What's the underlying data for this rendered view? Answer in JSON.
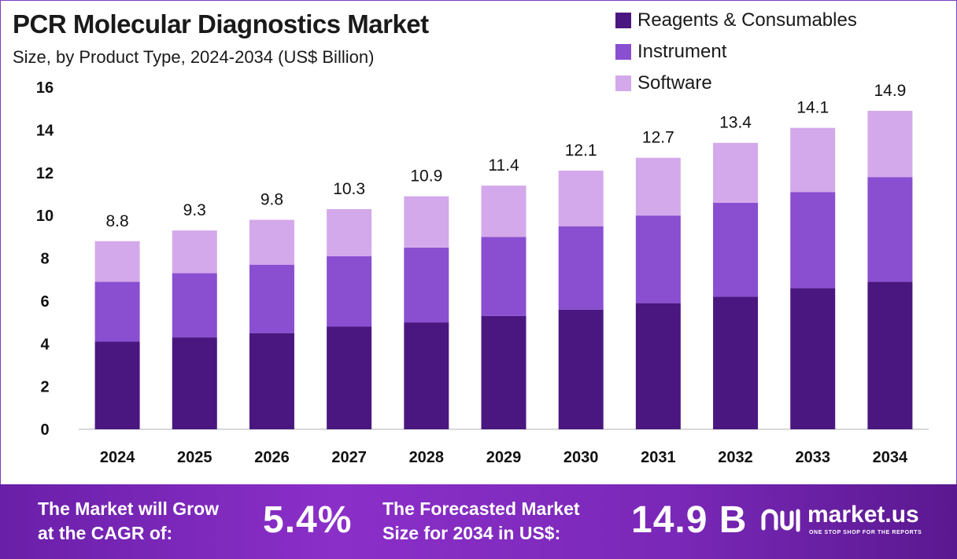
{
  "header": {
    "title": "PCR Molecular Diagnostics Market",
    "subtitle": "Size, by Product Type, 2024-2034 (US$ Billion)"
  },
  "colors": {
    "reagents": "#4a1780",
    "instrument": "#8a4fd0",
    "software": "#d4a9eb",
    "axis": "#cccccc"
  },
  "chart_data": {
    "type": "bar",
    "stacked": true,
    "categories": [
      "2024",
      "2025",
      "2026",
      "2027",
      "2028",
      "2029",
      "2030",
      "2031",
      "2032",
      "2033",
      "2034"
    ],
    "series": [
      {
        "name": "Reagents & Consumables",
        "values": [
          4.1,
          4.3,
          4.5,
          4.8,
          5.0,
          5.3,
          5.6,
          5.9,
          6.2,
          6.6,
          6.9
        ]
      },
      {
        "name": "Instrument",
        "values": [
          2.8,
          3.0,
          3.2,
          3.3,
          3.5,
          3.7,
          3.9,
          4.1,
          4.4,
          4.5,
          4.9
        ]
      },
      {
        "name": "Software",
        "values": [
          1.9,
          2.0,
          2.1,
          2.2,
          2.4,
          2.4,
          2.6,
          2.7,
          2.8,
          3.0,
          3.1
        ]
      }
    ],
    "totals": [
      "8.8",
      "9.3",
      "9.8",
      "10.3",
      "10.9",
      "11.4",
      "12.1",
      "12.7",
      "13.4",
      "14.1",
      "14.9"
    ],
    "yticks": [
      0,
      2,
      4,
      6,
      8,
      10,
      12,
      14,
      16
    ],
    "ylim": [
      0,
      16
    ],
    "xlabel": "",
    "ylabel": "",
    "legend_position": "top-right"
  },
  "footer": {
    "cagr_text_line1": "The Market will Grow",
    "cagr_text_line2": "at the CAGR of:",
    "cagr_value": "5.4%",
    "forecast_text_line1": "The Forecasted Market",
    "forecast_text_line2": "Size for 2034 in US$:",
    "forecast_value": "14.9 B",
    "logo_name": "market.us",
    "logo_tagline": "ONE STOP SHOP FOR THE REPORTS"
  }
}
